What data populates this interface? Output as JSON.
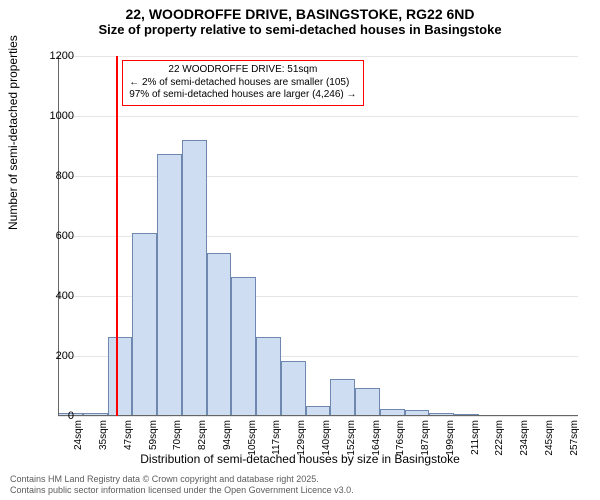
{
  "title": {
    "main": "22, WOODROFFE DRIVE, BASINGSTOKE, RG22 6ND",
    "sub": "Size of property relative to semi-detached houses in Basingstoke",
    "fontsize_main": 14,
    "fontsize_sub": 13
  },
  "chart": {
    "type": "histogram",
    "background_color": "#ffffff",
    "grid_color": "#e6e6e6",
    "axis_color": "#666666",
    "bar_fill": "#cfddf2",
    "bar_stroke": "#6f88b0",
    "bar_stroke_width": 1,
    "marker_color": "#ff0000",
    "annotation_border": "#ff0000",
    "annotation_bg": "#ffffff",
    "x_categories": [
      "24sqm",
      "35sqm",
      "47sqm",
      "59sqm",
      "70sqm",
      "82sqm",
      "94sqm",
      "105sqm",
      "117sqm",
      "129sqm",
      "140sqm",
      "152sqm",
      "164sqm",
      "176sqm",
      "187sqm",
      "199sqm",
      "211sqm",
      "222sqm",
      "234sqm",
      "245sqm",
      "257sqm"
    ],
    "values": [
      10,
      10,
      265,
      610,
      875,
      920,
      545,
      465,
      265,
      185,
      35,
      125,
      95,
      25,
      20,
      10,
      8,
      5,
      5,
      3,
      3
    ],
    "ylim": [
      0,
      1200
    ],
    "ytick_step": 200,
    "ylabel": "Number of semi-detached properties",
    "xlabel": "Distribution of semi-detached houses by size in Basingstoke",
    "label_fontsize": 12,
    "tick_fontsize": 11,
    "marker_position_index": 2.35,
    "annotation": {
      "line1": "22 WOODROFFE DRIVE: 51sqm",
      "line2": "← 2% of semi-detached houses are smaller (105)",
      "line3": "97% of semi-detached houses are larger (4,246) →"
    }
  },
  "footer": {
    "line1": "Contains HM Land Registry data © Crown copyright and database right 2025.",
    "line2": "Contains public sector information licensed under the Open Government Licence v3.0."
  }
}
